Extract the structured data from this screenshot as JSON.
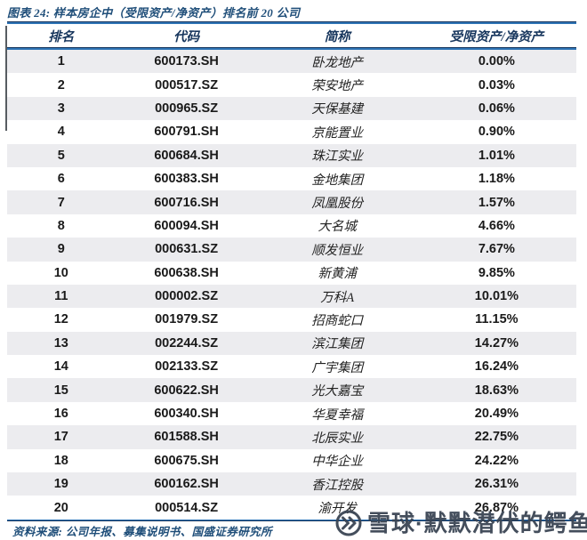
{
  "chart_data": {
    "type": "table",
    "title": "图表 24: 样本房企中（受限资产/净资产）排名前 20 公司",
    "columns": [
      "排名",
      "代码",
      "简称",
      "受限资产/净资产"
    ],
    "rows": [
      [
        "1",
        "600173.SH",
        "卧龙地产",
        "0.00%"
      ],
      [
        "2",
        "000517.SZ",
        "荣安地产",
        "0.03%"
      ],
      [
        "3",
        "000965.SZ",
        "天保基建",
        "0.06%"
      ],
      [
        "4",
        "600791.SH",
        "京能置业",
        "0.90%"
      ],
      [
        "5",
        "600684.SH",
        "珠江实业",
        "1.01%"
      ],
      [
        "6",
        "600383.SH",
        "金地集团",
        "1.18%"
      ],
      [
        "7",
        "600716.SH",
        "凤凰股份",
        "1.57%"
      ],
      [
        "8",
        "600094.SH",
        "大名城",
        "4.66%"
      ],
      [
        "9",
        "000631.SZ",
        "顺发恒业",
        "7.67%"
      ],
      [
        "10",
        "600638.SH",
        "新黄浦",
        "9.85%"
      ],
      [
        "11",
        "000002.SZ",
        "万科A",
        "10.01%"
      ],
      [
        "12",
        "001979.SZ",
        "招商蛇口",
        "11.15%"
      ],
      [
        "13",
        "002244.SZ",
        "滨江集团",
        "14.27%"
      ],
      [
        "14",
        "002133.SZ",
        "广宇集团",
        "16.24%"
      ],
      [
        "15",
        "600622.SH",
        "光大嘉宝",
        "18.63%"
      ],
      [
        "16",
        "600340.SH",
        "华夏幸福",
        "20.49%"
      ],
      [
        "17",
        "601588.SH",
        "北辰实业",
        "22.75%"
      ],
      [
        "18",
        "600675.SH",
        "中华企业",
        "24.22%"
      ],
      [
        "19",
        "600162.SH",
        "香江控股",
        "26.31%"
      ],
      [
        "20",
        "000514.SZ",
        "渝开发",
        "26.87%"
      ]
    ],
    "legend": "off",
    "grid": "alternating-row-shading"
  },
  "source_note": "资料来源: 公司年报、募集说明书、国盛证券研究所",
  "watermark": {
    "icon": "xueqiu-logo-icon",
    "text": "雪球·默默潜伏的鳄鱼"
  },
  "colors": {
    "title_blue": "#1F4E79",
    "header_navy": "#17365D",
    "rule_blue": "#2E74B5",
    "row_shade": "#ECECEF",
    "watermark_gray": "#3A4553"
  }
}
